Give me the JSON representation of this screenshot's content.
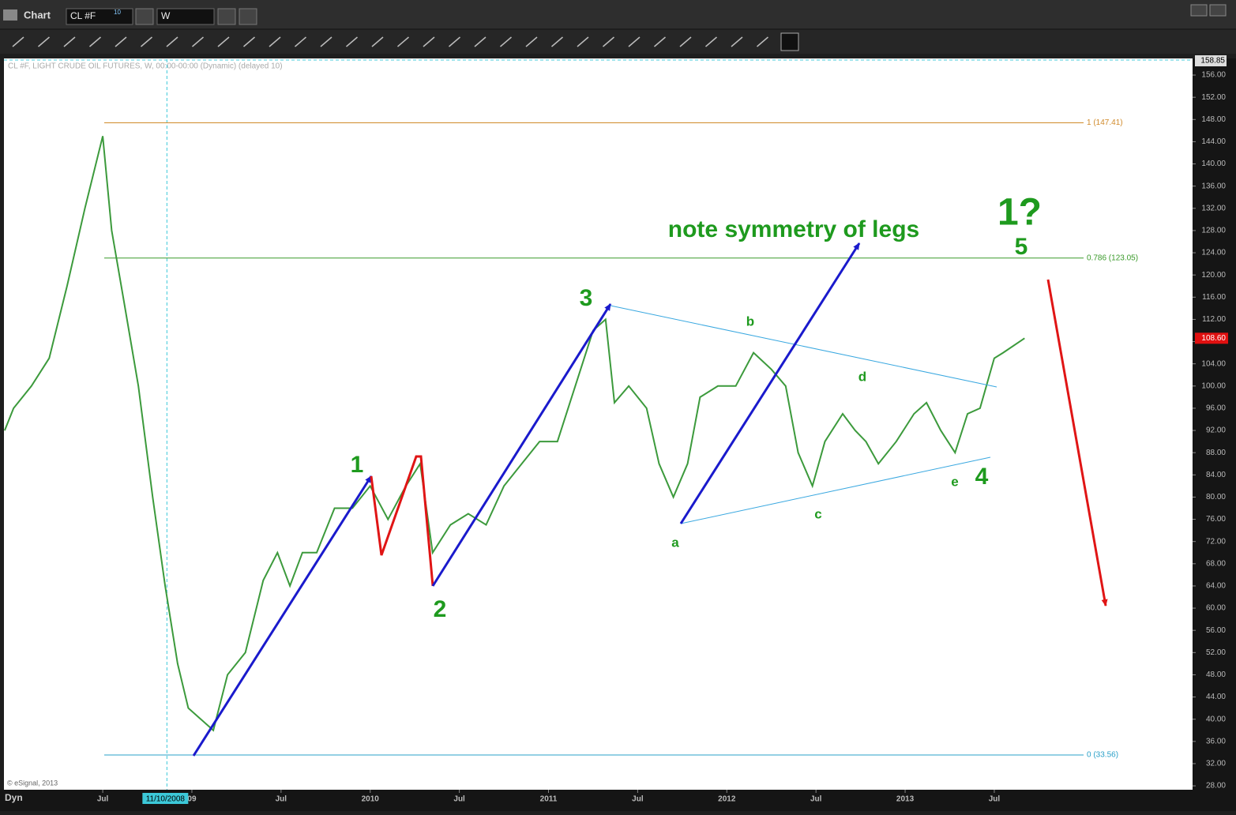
{
  "ui": {
    "window_title": "Chart",
    "symbol": "CL #F",
    "symbol_badge": "10",
    "interval": "W",
    "chart_caption": "CL #F, LIGHT CRUDE OIL FUTURES, W, 00:00-00:00 (Dynamic) (delayed 10)",
    "copyright": "© eSignal, 2013",
    "mode": "Dyn"
  },
  "chart_data": {
    "type": "line",
    "color": "#3c9a3c",
    "x": [
      2007.95,
      2008.0,
      2008.1,
      2008.2,
      2008.3,
      2008.4,
      2008.5,
      2008.55,
      2008.62,
      2008.7,
      2008.78,
      2008.85,
      2008.92,
      2008.98,
      2009.05,
      2009.12,
      2009.2,
      2009.3,
      2009.4,
      2009.48,
      2009.55,
      2009.62,
      2009.7,
      2009.8,
      2009.9,
      2010.0,
      2010.1,
      2010.2,
      2010.28,
      2010.35,
      2010.45,
      2010.55,
      2010.65,
      2010.75,
      2010.85,
      2010.95,
      2011.05,
      2011.15,
      2011.25,
      2011.32,
      2011.37,
      2011.45,
      2011.55,
      2011.62,
      2011.7,
      2011.78,
      2011.85,
      2011.95,
      2012.05,
      2012.15,
      2012.25,
      2012.33,
      2012.4,
      2012.48,
      2012.55,
      2012.65,
      2012.72,
      2012.78,
      2012.85,
      2012.95,
      2013.05,
      2013.12,
      2013.2,
      2013.28,
      2013.35,
      2013.42,
      2013.5,
      2013.55,
      2013.67
    ],
    "values": [
      92,
      96,
      100,
      105,
      118,
      132,
      145,
      128,
      115,
      100,
      80,
      64,
      50,
      42,
      40,
      38,
      48,
      52,
      65,
      70,
      64,
      70,
      70,
      78,
      78,
      82,
      76,
      82,
      86,
      70,
      75,
      77,
      75,
      82,
      86,
      90,
      90,
      100,
      110,
      112,
      97,
      100,
      96,
      86,
      80,
      86,
      98,
      100,
      100,
      106,
      103,
      100,
      88,
      82,
      90,
      95,
      92,
      90,
      86,
      90,
      95,
      97,
      92,
      88,
      95,
      96,
      105,
      106,
      108.6
    ],
    "last_value": 108.6,
    "last_value_label": "108.60",
    "xlim": [
      2007.946,
      2014.612
    ],
    "xticks": [
      {
        "value": 2008.5,
        "label": "Jul"
      },
      {
        "value": 2009,
        "label": "09"
      },
      {
        "value": 2009.5,
        "label": "Jul"
      },
      2010,
      {
        "value": 2010.5,
        "label": "Jul"
      },
      2011,
      {
        "value": 2011.5,
        "label": "Jul"
      },
      2012,
      {
        "value": 2012.5,
        "label": "Jul"
      },
      2013,
      {
        "value": 2013.5,
        "label": "Jul"
      }
    ],
    "crosshair_x": {
      "value": 2008.86,
      "label": "11/10/2008"
    },
    "ylim": [
      27.3,
      158.85
    ],
    "yticks": [
      {
        "value": 28,
        "label": "28.00"
      },
      {
        "value": 32,
        "label": "32.00"
      },
      {
        "value": 36,
        "label": "36.00"
      },
      {
        "value": 40,
        "label": "40.00"
      },
      {
        "value": 44,
        "label": "44.00"
      },
      {
        "value": 48,
        "label": "48.00"
      },
      {
        "value": 52,
        "label": "52.00"
      },
      {
        "value": 56,
        "label": "56.00"
      },
      {
        "value": 60,
        "label": "60.00"
      },
      {
        "value": 64,
        "label": "64.00"
      },
      {
        "value": 68,
        "label": "68.00"
      },
      {
        "value": 72,
        "label": "72.00"
      },
      {
        "value": 76,
        "label": "76.00"
      },
      {
        "value": 80,
        "label": "80.00"
      },
      {
        "value": 84,
        "label": "84.00"
      },
      {
        "value": 88,
        "label": "88.00"
      },
      {
        "value": 92,
        "label": "92.00"
      },
      {
        "value": 96,
        "label": "96.00"
      },
      {
        "value": 100,
        "label": "100.00"
      },
      {
        "value": 104,
        "label": "104.00"
      },
      {
        "value": 108,
        "label": "108.00"
      },
      {
        "value": 112,
        "label": "112.00"
      },
      {
        "value": 116,
        "label": "116.00"
      },
      {
        "value": 120,
        "label": "120.00"
      },
      {
        "value": 124,
        "label": "124.00"
      },
      {
        "value": 128,
        "label": "128.00"
      },
      {
        "value": 132,
        "label": "132.00"
      },
      {
        "value": 136,
        "label": "136.00"
      },
      {
        "value": 140,
        "label": "140.00"
      },
      {
        "value": 144,
        "label": "144.00"
      },
      {
        "value": 148,
        "label": "148.00"
      },
      {
        "value": 152,
        "label": "152.00"
      },
      {
        "value": 156,
        "label": "156.00"
      }
    ],
    "levels": [
      {
        "value": 147.41,
        "label": "1 (147.41)",
        "color": "#d08a2a"
      },
      {
        "value": 123.05,
        "label": "0.786 (123.05)",
        "color": "#3a9a2a"
      },
      {
        "value": 33.56,
        "label": "0 (33.56)",
        "color": "#2aa0c8"
      }
    ],
    "annotations": [
      "1",
      "2",
      "3",
      "4",
      "5",
      "1?",
      "a",
      "b",
      "c",
      "d",
      "e",
      "note symmetry of legs"
    ]
  }
}
